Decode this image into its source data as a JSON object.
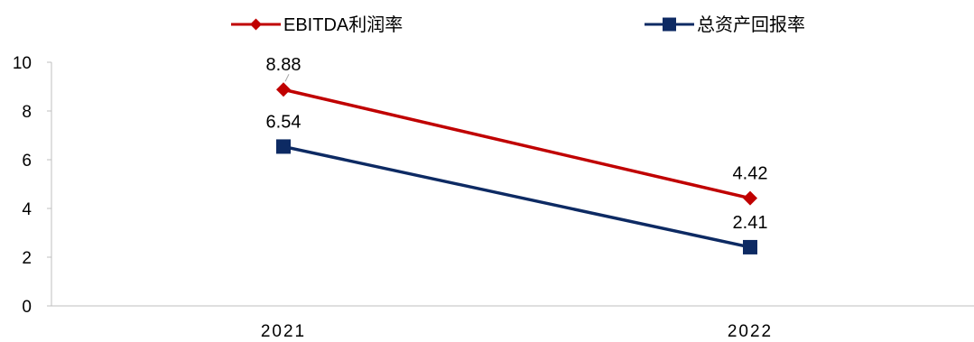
{
  "chart_data": {
    "type": "line",
    "categories": [
      "2021",
      "2022"
    ],
    "series": [
      {
        "name": "EBITDA利润率",
        "values": [
          8.88,
          4.42
        ],
        "labels": [
          "8.88",
          "4.42"
        ],
        "color": "#C00000",
        "marker": "diamond"
      },
      {
        "name": "总资产回报率",
        "values": [
          6.54,
          2.41
        ],
        "labels": [
          "6.54",
          "2.41"
        ],
        "color": "#0D2A63",
        "marker": "square"
      }
    ],
    "ylim": [
      0,
      10
    ],
    "yticks": [
      "0",
      "2",
      "4",
      "6",
      "8",
      "10"
    ],
    "grid": false,
    "legend": "top"
  }
}
